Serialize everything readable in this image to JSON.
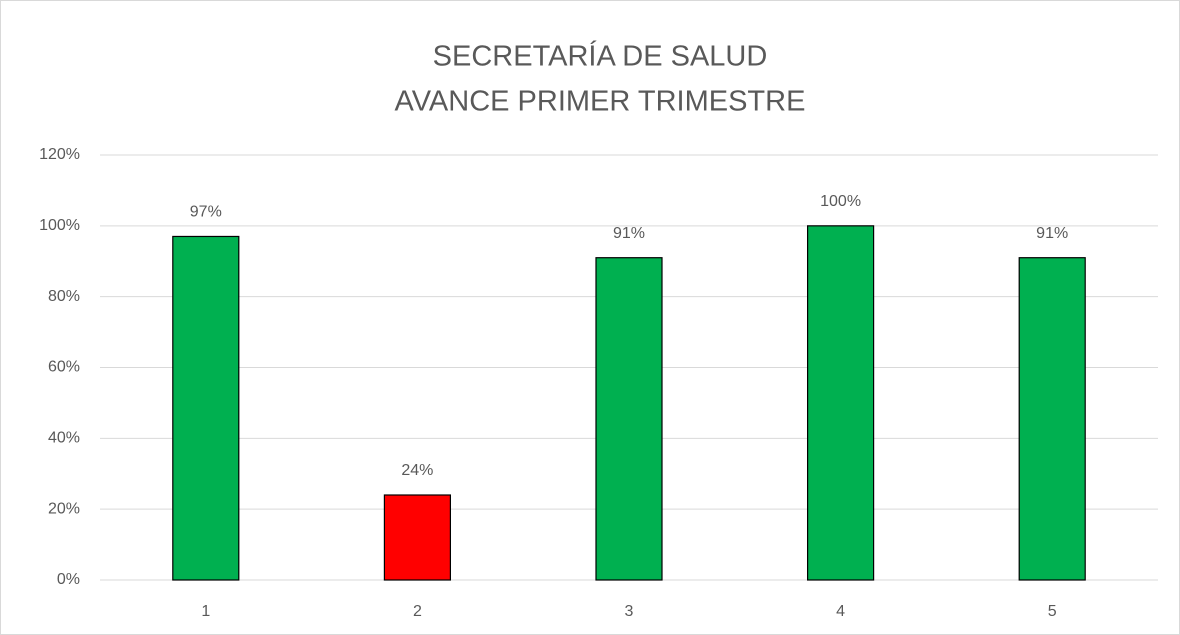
{
  "chart_data": {
    "type": "bar",
    "title": "SECRETARÍA DE SALUD",
    "subtitle": "AVANCE PRIMER TRIMESTRE",
    "categories": [
      "1",
      "2",
      "3",
      "4",
      "5"
    ],
    "values": [
      97,
      24,
      91,
      100,
      91
    ],
    "value_labels": [
      "97%",
      "24%",
      "91%",
      "100%",
      "91%"
    ],
    "colors": [
      "#00b050",
      "#ff0000",
      "#00b050",
      "#00b050",
      "#00b050"
    ],
    "ylim": [
      0,
      120
    ],
    "yticks": [
      {
        "value": 0,
        "label": "0%"
      },
      {
        "value": 20,
        "label": "20%"
      },
      {
        "value": 40,
        "label": "40%"
      },
      {
        "value": 60,
        "label": "60%"
      },
      {
        "value": 80,
        "label": "80%"
      },
      {
        "value": 100,
        "label": "100%"
      },
      {
        "value": 120,
        "label": "120%"
      }
    ],
    "grid": true
  }
}
